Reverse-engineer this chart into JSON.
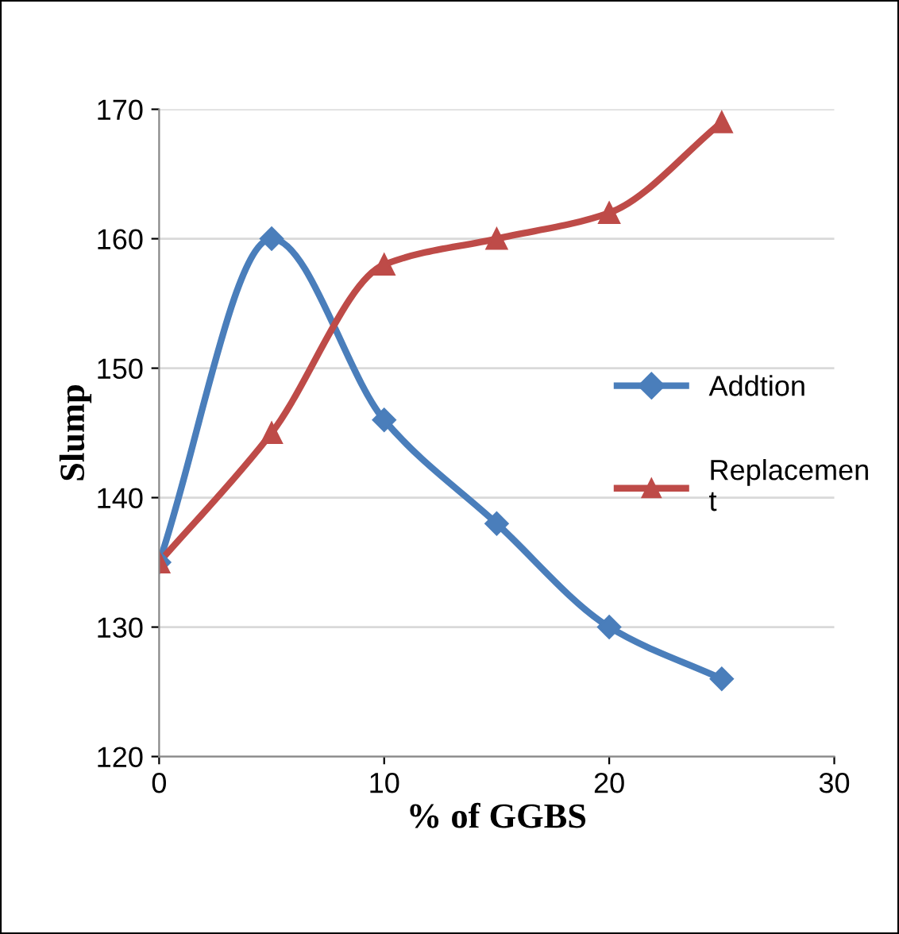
{
  "chart_data": {
    "type": "line",
    "xlabel": "% of GGBS",
    "ylabel": "Slump",
    "x": [
      0,
      5,
      10,
      15,
      20,
      25
    ],
    "series": [
      {
        "name": "Addtion",
        "color": "#4a7ebb",
        "marker": "diamond",
        "values": [
          135,
          160,
          146,
          138,
          130,
          126
        ]
      },
      {
        "name": "Replacemen\nt",
        "color": "#be4b48",
        "marker": "triangle",
        "values": [
          135,
          145,
          158,
          160,
          162,
          169
        ]
      }
    ],
    "xlim": [
      0,
      30
    ],
    "xticks": [
      0,
      10,
      20,
      30
    ],
    "ylim": [
      120,
      170
    ],
    "yticks": [
      120,
      130,
      140,
      150,
      160,
      170
    ],
    "grid": "y",
    "legend": "right",
    "line_style": "solid"
  }
}
